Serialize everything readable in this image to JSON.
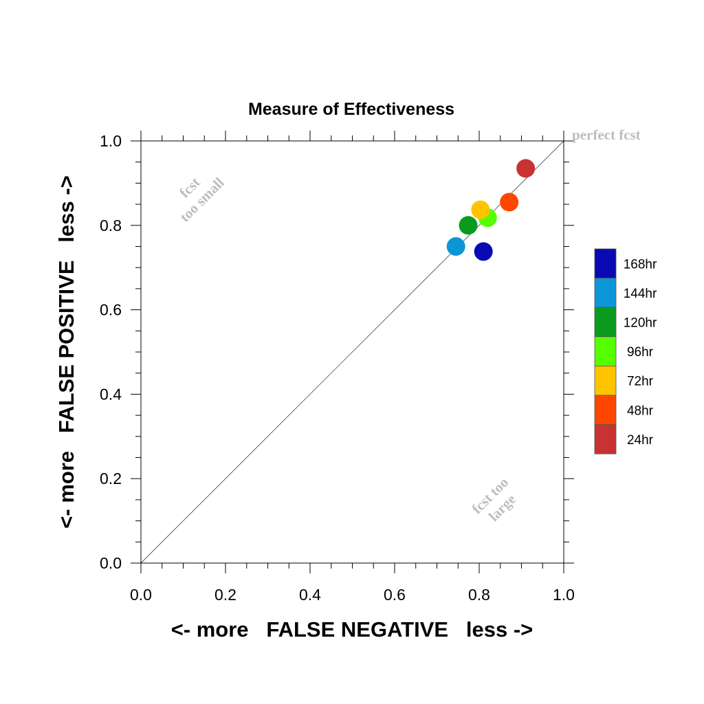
{
  "chart_data": {
    "type": "scatter",
    "title": "Measure of Effectiveness",
    "xlabel": "<- more   FALSE NEGATIVE   less ->",
    "ylabel": "<- more   FALSE POSITIVE   less ->",
    "xlim": [
      0,
      1
    ],
    "ylim": [
      0,
      1
    ],
    "xticks": [
      "0.0",
      "0.2",
      "0.4",
      "0.6",
      "0.8",
      "1.0"
    ],
    "yticks": [
      "0.0",
      "0.2",
      "0.4",
      "0.6",
      "0.8",
      "1.0"
    ],
    "grid": false,
    "reference_line": "diagonal",
    "annotations": {
      "perfect": "perfect fcst",
      "too_small": [
        "fcst",
        "too small"
      ],
      "too_large": [
        "fcst too",
        "large"
      ]
    },
    "legend_position": "right",
    "series": [
      {
        "name": "168hr",
        "color": "#0a0ab4",
        "x": 0.81,
        "y": 0.738
      },
      {
        "name": "144hr",
        "color": "#0c96d8",
        "x": 0.745,
        "y": 0.75
      },
      {
        "name": "120hr",
        "color": "#0a9b1e",
        "x": 0.774,
        "y": 0.8
      },
      {
        "name": "96hr",
        "color": "#55ff00",
        "x": 0.82,
        "y": 0.818
      },
      {
        "name": "72hr",
        "color": "#ffc400",
        "x": 0.803,
        "y": 0.837
      },
      {
        "name": "48hr",
        "color": "#ff4600",
        "x": 0.871,
        "y": 0.855
      },
      {
        "name": "24hr",
        "color": "#c83232",
        "x": 0.91,
        "y": 0.935
      }
    ]
  }
}
